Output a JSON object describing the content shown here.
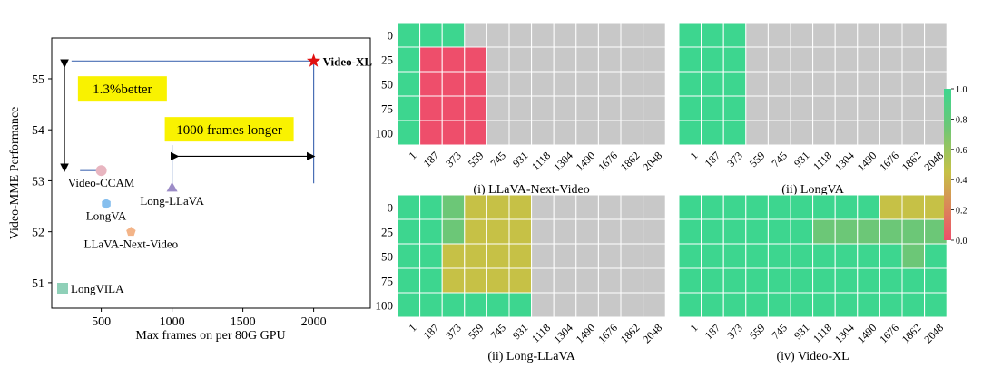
{
  "colors": {
    "green": "#3dd68f",
    "red": "#ee4e6b",
    "yellow": "#c6c146",
    "light_green": "#6cc777",
    "gray": "#c8c8c8",
    "callout_fill": "#f9f200",
    "axis_line": "#4a6fb5",
    "arrow": "#000000",
    "star": "#e01010",
    "videoccam": "#e8b5c0",
    "longva": "#86bfee",
    "llava_next": "#f3b488",
    "long_llava": "#9c8cc7",
    "longvila": "#8fd0b8"
  },
  "chart_data": [
    {
      "type": "scatter",
      "xlabel": "Max frames on per 80G GPU",
      "ylabel": "Video-MME Performance",
      "xlim": [
        150,
        2400
      ],
      "ylim": [
        50.5,
        55.8
      ],
      "xticks": [
        500,
        1000,
        1500,
        2000
      ],
      "yticks": [
        51,
        52,
        53,
        54,
        55
      ],
      "grid": false,
      "points": [
        {
          "label": "Video-XL",
          "x": 2000,
          "y": 55.35,
          "marker": "star",
          "color_key": "star"
        },
        {
          "label": "Video-CCAM",
          "x": 500,
          "y": 53.2,
          "marker": "circle",
          "color_key": "videoccam"
        },
        {
          "label": "LongVA",
          "x": 535,
          "y": 52.55,
          "marker": "hexagon",
          "color_key": "longva"
        },
        {
          "label": "LLaVA-Next-Video",
          "x": 710,
          "y": 52.0,
          "marker": "pentagon",
          "color_key": "llava_next"
        },
        {
          "label": "Long-LLaVA",
          "x": 1000,
          "y": 52.85,
          "marker": "triangle",
          "color_key": "long_llava"
        }
      ],
      "legend": [
        {
          "label": "LongVILA",
          "color_key": "longvila",
          "placement": "bottom-left"
        }
      ],
      "annotations": [
        "1.3%better",
        "1000 frames longer"
      ]
    },
    {
      "type": "heatmap",
      "panels": [
        {
          "title": "(i) LLaVA-Next-Video",
          "grid": [
            [
              "G",
              "G",
              "G",
              "GR",
              "GR",
              "GR",
              "GR",
              "GR",
              "GR",
              "GR",
              "GR",
              "GR"
            ],
            [
              "G",
              "R",
              "R",
              "R",
              "GR",
              "GR",
              "GR",
              "GR",
              "GR",
              "GR",
              "GR",
              "GR"
            ],
            [
              "G",
              "R",
              "R",
              "R",
              "GR",
              "GR",
              "GR",
              "GR",
              "GR",
              "GR",
              "GR",
              "GR"
            ],
            [
              "G",
              "R",
              "R",
              "R",
              "GR",
              "GR",
              "GR",
              "GR",
              "GR",
              "GR",
              "GR",
              "GR"
            ],
            [
              "G",
              "R",
              "R",
              "R",
              "GR",
              "GR",
              "GR",
              "GR",
              "GR",
              "GR",
              "GR",
              "GR"
            ]
          ]
        },
        {
          "title": "(ii) LongVA",
          "grid": [
            [
              "G",
              "G",
              "G",
              "GR",
              "GR",
              "GR",
              "GR",
              "GR",
              "GR",
              "GR",
              "GR",
              "GR"
            ],
            [
              "G",
              "G",
              "G",
              "GR",
              "GR",
              "GR",
              "GR",
              "GR",
              "GR",
              "GR",
              "GR",
              "GR"
            ],
            [
              "G",
              "G",
              "G",
              "GR",
              "GR",
              "GR",
              "GR",
              "GR",
              "GR",
              "GR",
              "GR",
              "GR"
            ],
            [
              "G",
              "G",
              "G",
              "GR",
              "GR",
              "GR",
              "GR",
              "GR",
              "GR",
              "GR",
              "GR",
              "GR"
            ],
            [
              "G",
              "G",
              "G",
              "GR",
              "GR",
              "GR",
              "GR",
              "GR",
              "GR",
              "GR",
              "GR",
              "GR"
            ]
          ]
        },
        {
          "title": "(ii) Long-LLaVA",
          "grid": [
            [
              "G",
              "G",
              "L",
              "Y",
              "Y",
              "Y",
              "GR",
              "GR",
              "GR",
              "GR",
              "GR",
              "GR"
            ],
            [
              "G",
              "G",
              "L",
              "Y",
              "Y",
              "Y",
              "GR",
              "GR",
              "GR",
              "GR",
              "GR",
              "GR"
            ],
            [
              "G",
              "G",
              "Y",
              "Y",
              "Y",
              "Y",
              "GR",
              "GR",
              "GR",
              "GR",
              "GR",
              "GR"
            ],
            [
              "G",
              "G",
              "Y",
              "Y",
              "Y",
              "Y",
              "GR",
              "GR",
              "GR",
              "GR",
              "GR",
              "GR"
            ],
            [
              "G",
              "G",
              "G",
              "G",
              "G",
              "G",
              "GR",
              "GR",
              "GR",
              "GR",
              "GR",
              "GR"
            ]
          ]
        },
        {
          "title": "(iv) Video-XL",
          "grid": [
            [
              "G",
              "G",
              "G",
              "G",
              "G",
              "G",
              "G",
              "G",
              "G",
              "Y",
              "Y",
              "Y"
            ],
            [
              "G",
              "G",
              "G",
              "G",
              "G",
              "G",
              "L",
              "L",
              "L",
              "L",
              "L",
              "L"
            ],
            [
              "G",
              "G",
              "G",
              "G",
              "G",
              "G",
              "G",
              "G",
              "G",
              "G",
              "L",
              "G"
            ],
            [
              "G",
              "G",
              "G",
              "G",
              "G",
              "G",
              "G",
              "G",
              "G",
              "G",
              "G",
              "G"
            ],
            [
              "G",
              "G",
              "G",
              "G",
              "G",
              "G",
              "G",
              "G",
              "G",
              "G",
              "G",
              "G"
            ]
          ]
        }
      ],
      "x_tick_labels": [
        "1",
        "187",
        "373",
        "559",
        "745",
        "931",
        "1118",
        "1304",
        "1490",
        "1676",
        "1862",
        "2048"
      ],
      "y_tick_labels": [
        "0",
        "25",
        "50",
        "75",
        "100"
      ],
      "colorbar": {
        "range": [
          0.0,
          1.0
        ],
        "ticks": [
          "0.0",
          "0.2",
          "0.4",
          "0.6",
          "0.8",
          "1.0"
        ]
      }
    }
  ]
}
